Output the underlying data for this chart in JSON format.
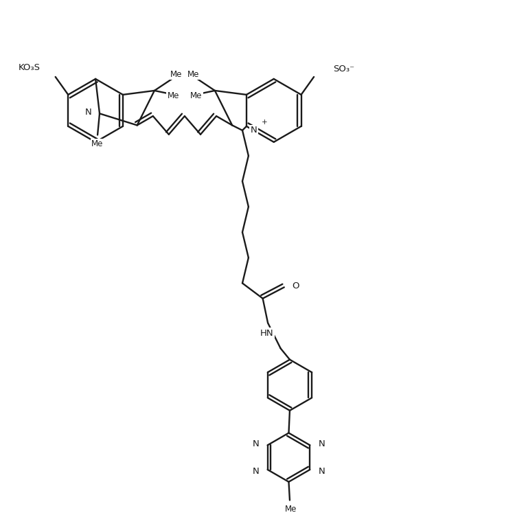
{
  "bg": "#ffffff",
  "lc": "#1a1a1a",
  "lw": 1.7,
  "fs": 9.5,
  "fs_small": 8.5,
  "dpi": 100,
  "figsize": [
    7.5,
    7.5
  ],
  "xlim": [
    0,
    10
  ],
  "ylim": [
    0,
    10
  ],
  "dbo": 0.07
}
